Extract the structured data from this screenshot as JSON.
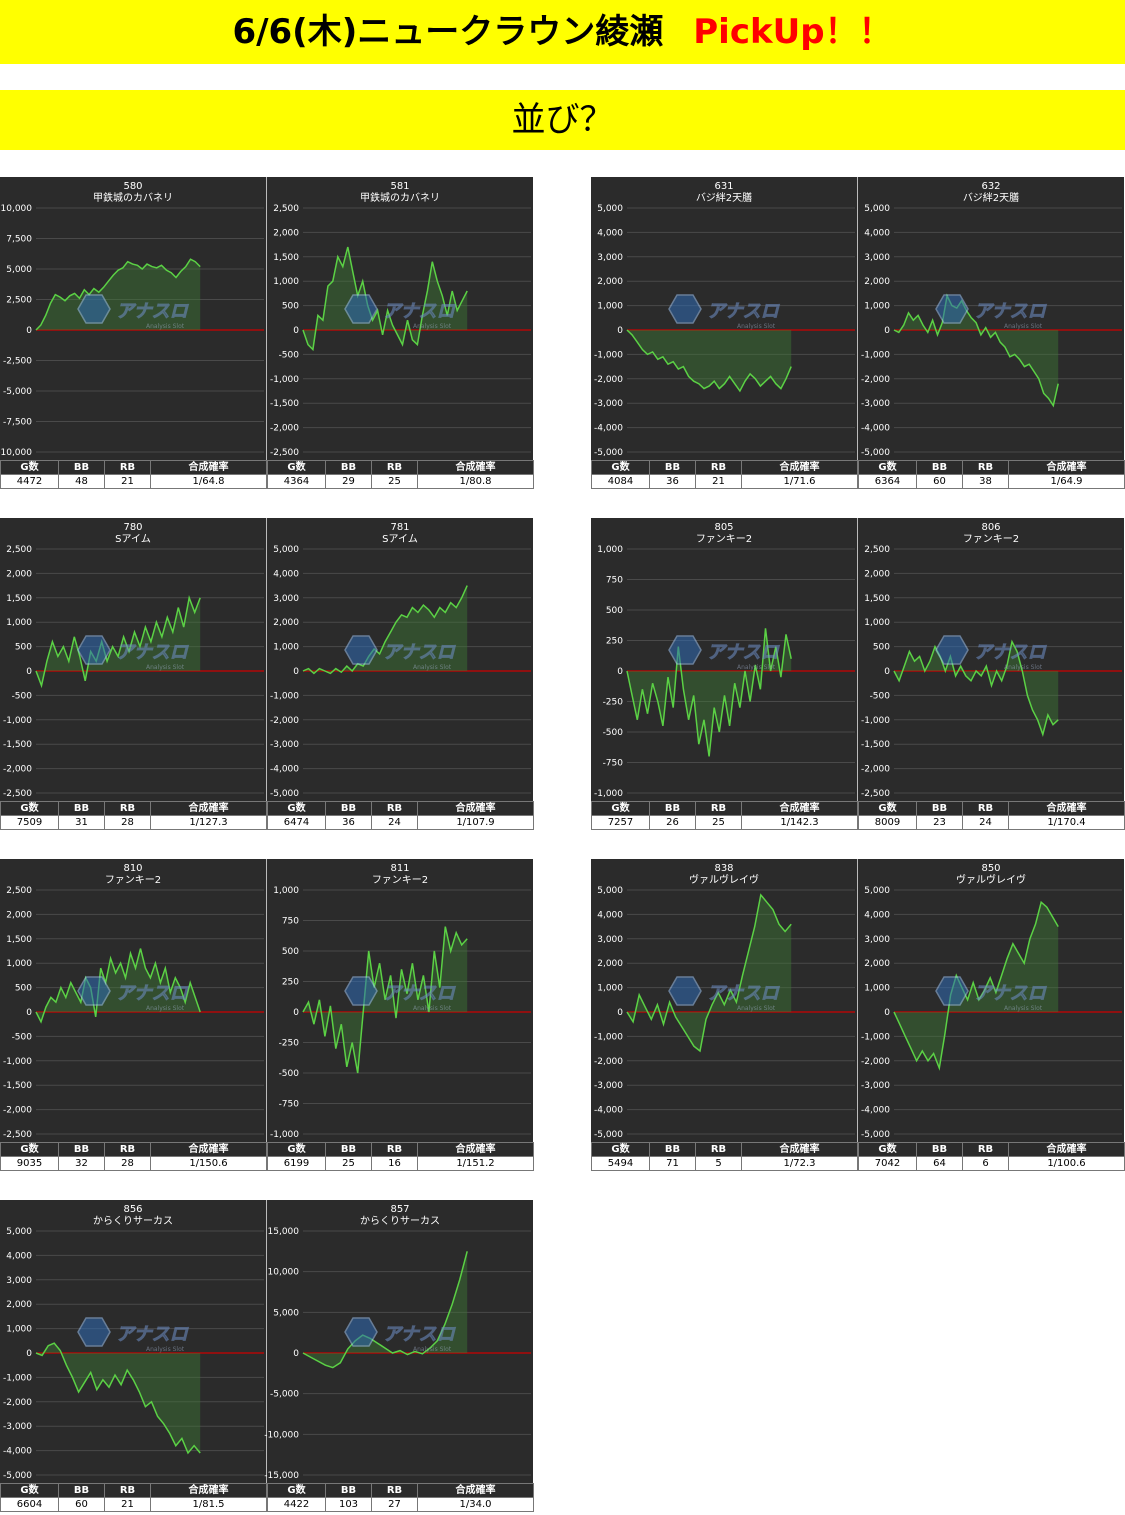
{
  "header": {
    "title": "6/6(木)ニュークラウン綾瀬",
    "accent": "PickUp！！",
    "subtitle": "並び？"
  },
  "colors": {
    "banner": "#ffff00",
    "accent": "#ff0000",
    "line": "#5bd145",
    "zero_line": "#cc0000",
    "chart_bg": "#2b2b2b"
  },
  "stat_headers": [
    "G数",
    "BB",
    "RB",
    "合成確率"
  ],
  "watermark": {
    "text": "アナスロ",
    "sub": "Analysis Slot",
    "icon": "hexagon-logo-icon"
  },
  "panels": [
    {
      "left": {
        "num": "580",
        "machine": "甲鉄城のカバネリ",
        "stats": [
          "4472",
          "48",
          "21",
          "1/64.8"
        ]
      },
      "right": {
        "num": "581",
        "machine": "甲鉄城のカバネリ",
        "stats": [
          "4364",
          "29",
          "25",
          "1/80.8"
        ]
      }
    },
    {
      "left": {
        "num": "631",
        "machine": "バジ絆2天膳",
        "stats": [
          "4084",
          "36",
          "21",
          "1/71.6"
        ]
      },
      "right": {
        "num": "632",
        "machine": "バジ絆2天膳",
        "stats": [
          "6364",
          "60",
          "38",
          "1/64.9"
        ]
      }
    },
    {
      "left": {
        "num": "780",
        "machine": "Sアイム",
        "stats": [
          "7509",
          "31",
          "28",
          "1/127.3"
        ]
      },
      "right": {
        "num": "781",
        "machine": "Sアイム",
        "stats": [
          "6474",
          "36",
          "24",
          "1/107.9"
        ]
      }
    },
    {
      "left": {
        "num": "805",
        "machine": "ファンキー2",
        "stats": [
          "7257",
          "26",
          "25",
          "1/142.3"
        ]
      },
      "right": {
        "num": "806",
        "machine": "ファンキー2",
        "stats": [
          "8009",
          "23",
          "24",
          "1/170.4"
        ]
      }
    },
    {
      "left": {
        "num": "810",
        "machine": "ファンキー2",
        "stats": [
          "9035",
          "32",
          "28",
          "1/150.6"
        ]
      },
      "right": {
        "num": "811",
        "machine": "ファンキー2",
        "stats": [
          "6199",
          "25",
          "16",
          "1/151.2"
        ]
      }
    },
    {
      "left": {
        "num": "838",
        "machine": "ヴァルヴレイヴ",
        "stats": [
          "5494",
          "71",
          "5",
          "1/72.3"
        ]
      },
      "right": {
        "num": "850",
        "machine": "ヴァルヴレイヴ",
        "stats": [
          "7042",
          "64",
          "6",
          "1/100.6"
        ]
      }
    },
    {
      "left": {
        "num": "856",
        "machine": "からくりサーカス",
        "stats": [
          "6604",
          "60",
          "21",
          "1/81.5"
        ]
      },
      "right": {
        "num": "857",
        "machine": "からくりサーカス",
        "stats": [
          "4422",
          "103",
          "27",
          "1/34.0"
        ]
      }
    }
  ],
  "chart_data": [
    {
      "id": "580",
      "type": "area",
      "ylim": [
        -10000,
        10000
      ],
      "yticks": [
        "10,000",
        "7,500",
        "5,000",
        "2,500",
        "0",
        "-2,500",
        "-5,000",
        "-7,500",
        "-10,000"
      ],
      "values": [
        0,
        400,
        1200,
        2200,
        2900,
        2700,
        2400,
        2800,
        3000,
        2600,
        3300,
        2900,
        3400,
        3100,
        3500,
        4000,
        4500,
        4900,
        5100,
        5600,
        5400,
        5300,
        5000,
        5400,
        5200,
        5100,
        5300,
        4900,
        4700,
        4300,
        4800,
        5200,
        5800,
        5600,
        5200
      ]
    },
    {
      "id": "581",
      "type": "area",
      "ylim": [
        -2500,
        2500
      ],
      "yticks": [
        "2,500",
        "2,000",
        "1,500",
        "1,000",
        "500",
        "0",
        "-500",
        "-1,000",
        "-1,500",
        "-2,000",
        "-2,500"
      ],
      "values": [
        0,
        -300,
        -400,
        300,
        200,
        900,
        1000,
        1500,
        1300,
        1700,
        1200,
        700,
        1000,
        500,
        200,
        400,
        -100,
        400,
        100,
        -100,
        -300,
        200,
        -200,
        -300,
        300,
        800,
        1400,
        1000,
        700,
        300,
        800,
        400,
        600,
        800
      ]
    },
    {
      "id": "631",
      "type": "area",
      "ylim": [
        -5000,
        5000
      ],
      "yticks": [
        "5,000",
        "4,000",
        "3,000",
        "2,000",
        "1,000",
        "0",
        "-1,000",
        "-2,000",
        "-3,000",
        "-4,000",
        "-5,000"
      ],
      "values": [
        0,
        -200,
        -500,
        -800,
        -1000,
        -900,
        -1200,
        -1100,
        -1400,
        -1300,
        -1600,
        -1500,
        -1900,
        -2100,
        -2200,
        -2400,
        -2300,
        -2100,
        -2400,
        -2200,
        -1900,
        -2200,
        -2500,
        -2100,
        -1800,
        -2000,
        -2300,
        -2100,
        -1900,
        -2200,
        -2400,
        -2000,
        -1500
      ]
    },
    {
      "id": "632",
      "type": "area",
      "ylim": [
        -5000,
        5000
      ],
      "yticks": [
        "5,000",
        "4,000",
        "3,000",
        "2,000",
        "1,000",
        "0",
        "-1,000",
        "-2,000",
        "-3,000",
        "-4,000",
        "-5,000"
      ],
      "values": [
        0,
        -100,
        200,
        700,
        400,
        600,
        200,
        -100,
        400,
        -200,
        300,
        1400,
        1000,
        900,
        1200,
        800,
        500,
        300,
        -200,
        100,
        -300,
        -100,
        -500,
        -700,
        -1100,
        -1000,
        -1200,
        -1500,
        -1400,
        -1700,
        -2000,
        -2600,
        -2800,
        -3100,
        -2200
      ]
    },
    {
      "id": "780",
      "type": "area",
      "ylim": [
        -2500,
        2500
      ],
      "yticks": [
        "2,500",
        "2,000",
        "1,500",
        "1,000",
        "500",
        "0",
        "-500",
        "-1,000",
        "-1,500",
        "-2,000",
        "-2,500"
      ],
      "values": [
        0,
        -300,
        200,
        600,
        300,
        500,
        200,
        700,
        300,
        -200,
        400,
        200,
        600,
        200,
        500,
        300,
        700,
        400,
        800,
        500,
        900,
        600,
        1000,
        700,
        1100,
        800,
        1300,
        900,
        1500,
        1200,
        1500
      ]
    },
    {
      "id": "781",
      "type": "area",
      "ylim": [
        -5000,
        5000
      ],
      "yticks": [
        "5,000",
        "4,000",
        "3,000",
        "2,000",
        "1,000",
        "0",
        "-1,000",
        "-2,000",
        "-3,000",
        "-4,000",
        "-5,000"
      ],
      "values": [
        0,
        100,
        -100,
        100,
        0,
        -100,
        100,
        -50,
        200,
        0,
        300,
        200,
        600,
        900,
        700,
        1200,
        1600,
        2000,
        2300,
        2200,
        2600,
        2400,
        2700,
        2500,
        2200,
        2600,
        2400,
        2800,
        2600,
        3000,
        3500
      ]
    },
    {
      "id": "805",
      "type": "area",
      "ylim": [
        -1000,
        1000
      ],
      "yticks": [
        "1,000",
        "750",
        "500",
        "250",
        "0",
        "-250",
        "-500",
        "-750",
        "-1,000"
      ],
      "values": [
        0,
        -200,
        -400,
        -150,
        -350,
        -100,
        -250,
        -450,
        -50,
        -300,
        200,
        -150,
        -400,
        -200,
        -600,
        -400,
        -700,
        -300,
        -500,
        -200,
        -450,
        -100,
        -300,
        0,
        -250,
        50,
        -150,
        350,
        0,
        200,
        -50,
        300,
        100
      ]
    },
    {
      "id": "806",
      "type": "area",
      "ylim": [
        -2500,
        2500
      ],
      "yticks": [
        "2,500",
        "2,000",
        "1,500",
        "1,000",
        "500",
        "0",
        "-500",
        "-1,000",
        "-1,500",
        "-2,000",
        "-2,500"
      ],
      "values": [
        0,
        -200,
        100,
        400,
        200,
        300,
        0,
        200,
        500,
        300,
        0,
        300,
        -100,
        100,
        -100,
        -200,
        0,
        -100,
        100,
        -300,
        0,
        -200,
        100,
        600,
        400,
        0,
        -500,
        -800,
        -1000,
        -1300,
        -900,
        -1100,
        -1000
      ]
    },
    {
      "id": "810",
      "type": "area",
      "ylim": [
        -2500,
        2500
      ],
      "yticks": [
        "2,500",
        "2,000",
        "1,500",
        "1,000",
        "500",
        "0",
        "-500",
        "-1,000",
        "-1,500",
        "-2,000",
        "-2,500"
      ],
      "values": [
        0,
        -200,
        100,
        300,
        200,
        500,
        300,
        600,
        400,
        200,
        700,
        500,
        -100,
        900,
        600,
        1100,
        800,
        1000,
        700,
        1200,
        900,
        1300,
        900,
        700,
        1000,
        600,
        900,
        400,
        700,
        500,
        200,
        600,
        300,
        0
      ]
    },
    {
      "id": "811",
      "type": "area",
      "ylim": [
        -1000,
        1000
      ],
      "yticks": [
        "1,000",
        "750",
        "500",
        "250",
        "0",
        "-250",
        "-500",
        "-750",
        "-1,000"
      ],
      "values": [
        0,
        80,
        -100,
        100,
        -200,
        50,
        -300,
        -100,
        -450,
        -250,
        -500,
        0,
        500,
        200,
        400,
        100,
        300,
        -50,
        350,
        150,
        400,
        100,
        300,
        0,
        500,
        200,
        700,
        500,
        650,
        550,
        600
      ]
    },
    {
      "id": "838",
      "type": "area",
      "ylim": [
        -5000,
        5000
      ],
      "yticks": [
        "5,000",
        "4,000",
        "3,000",
        "2,000",
        "1,000",
        "0",
        "-1,000",
        "-2,000",
        "-3,000",
        "-4,000",
        "-5,000"
      ],
      "values": [
        0,
        -400,
        700,
        200,
        -300,
        300,
        -500,
        400,
        -200,
        -600,
        -1000,
        -1400,
        -1600,
        -300,
        300,
        800,
        300,
        900,
        400,
        1500,
        2500,
        3500,
        4800,
        4500,
        4200,
        3600,
        3300,
        3600
      ]
    },
    {
      "id": "850",
      "type": "area",
      "ylim": [
        -5000,
        5000
      ],
      "yticks": [
        "5,000",
        "4,000",
        "3,000",
        "2,000",
        "1,000",
        "0",
        "-1,000",
        "-2,000",
        "-3,000",
        "-4,000",
        "-5,000"
      ],
      "values": [
        0,
        -500,
        -1000,
        -1500,
        -2000,
        -1600,
        -2000,
        -1700,
        -2300,
        -900,
        700,
        1500,
        1000,
        500,
        1200,
        500,
        900,
        1400,
        800,
        1500,
        2200,
        2800,
        2400,
        2000,
        3000,
        3600,
        4500,
        4300,
        3900,
        3500
      ]
    },
    {
      "id": "856",
      "type": "area",
      "ylim": [
        -5000,
        5000
      ],
      "yticks": [
        "5,000",
        "4,000",
        "3,000",
        "2,000",
        "1,000",
        "0",
        "-1,000",
        "-2,000",
        "-3,000",
        "-4,000",
        "-5,000"
      ],
      "values": [
        0,
        -100,
        300,
        400,
        100,
        -500,
        -1000,
        -1600,
        -1200,
        -800,
        -1500,
        -1100,
        -1400,
        -900,
        -1300,
        -700,
        -1100,
        -1600,
        -2200,
        -2000,
        -2600,
        -2900,
        -3300,
        -3800,
        -3500,
        -4100,
        -3800,
        -4100
      ]
    },
    {
      "id": "857",
      "type": "area",
      "ylim": [
        -15000,
        15000
      ],
      "yticks": [
        "15,000",
        "10,000",
        "5,000",
        "0",
        "-5,000",
        "-10,000",
        "-15,000"
      ],
      "values": [
        0,
        -500,
        -1000,
        -1500,
        -1800,
        -1200,
        500,
        1500,
        2200,
        1800,
        1200,
        600,
        0,
        300,
        -200,
        200,
        -100,
        600,
        1500,
        3500,
        6000,
        9000,
        12500
      ]
    }
  ]
}
